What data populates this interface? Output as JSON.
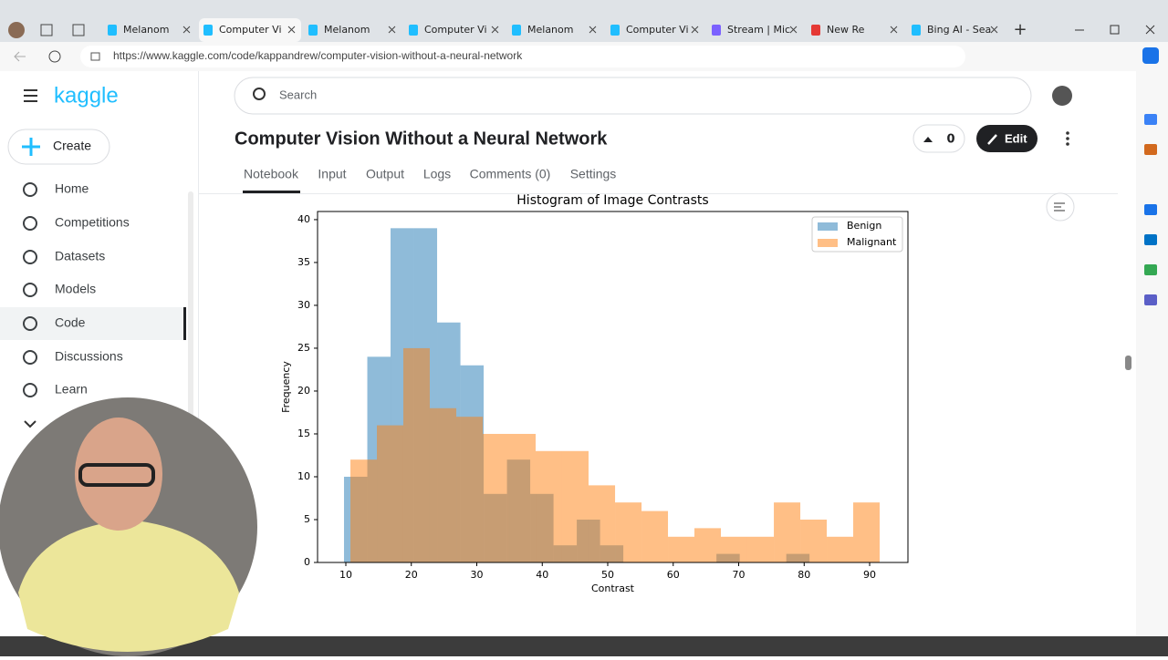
{
  "browser": {
    "tabs": [
      "Melanom",
      "Computer Vi",
      "Melanom",
      "Computer Vi",
      "Melanom",
      "Computer Vi",
      "Stream | Mic",
      "New Re",
      "Bing AI - Sea"
    ],
    "url": "https://www.kaggle.com/code/kappandrew/computer-vision-without-a-neural-network"
  },
  "sidebar": {
    "logo": "kaggle",
    "create": "Create",
    "nav": [
      "Home",
      "Competitions",
      "Datasets",
      "Models",
      "Code",
      "Discussions",
      "Learn"
    ]
  },
  "header": {
    "search": "Search",
    "title": "Computer Vision Without a Neural Network",
    "votes": "0",
    "edit": "Edit",
    "tabs": [
      "Notebook",
      "Input",
      "Output",
      "Logs",
      "Comments (0)",
      "Settings"
    ]
  },
  "chart_data": {
    "type": "histogram",
    "title": "Histogram of Image Contrasts",
    "x_label": "Contrast",
    "y_label": "Frequency",
    "alpha": 0.5,
    "legend": "upper right",
    "xlim": [
      5.68,
      95.85
    ],
    "ylim": [
      0,
      40.95
    ],
    "xticks": [
      10,
      20,
      30,
      40,
      50,
      60,
      70,
      80,
      90
    ],
    "yticks": [
      0,
      5,
      10,
      15,
      20,
      25,
      30,
      35,
      40
    ],
    "series": [
      {
        "name": "Benign",
        "color": "#1f77b4",
        "bins": [
          9.72,
          13.28,
          16.83,
          20.39,
          23.94,
          27.5,
          31.05,
          34.61,
          38.16,
          41.72,
          45.27,
          48.83,
          52.38,
          55.94,
          59.49,
          63.05,
          66.6,
          70.16,
          73.71,
          77.27,
          80.82
        ],
        "values": [
          10,
          24,
          39,
          39,
          28,
          23,
          8,
          12,
          8,
          2,
          5,
          2,
          0,
          0,
          0,
          0,
          1,
          0,
          0,
          1
        ]
      },
      {
        "name": "Malignant",
        "color": "#ff7f0e",
        "bins": [
          10.7,
          14.74,
          18.78,
          22.82,
          26.87,
          30.91,
          34.95,
          38.99,
          43.03,
          47.07,
          51.12,
          55.16,
          59.2,
          63.24,
          67.28,
          71.32,
          75.37,
          79.41,
          83.45,
          87.49,
          91.53
        ],
        "values": [
          12,
          16,
          25,
          18,
          17,
          15,
          15,
          13,
          13,
          9,
          7,
          6,
          3,
          4,
          3,
          3,
          7,
          5,
          3,
          7
        ]
      }
    ]
  }
}
